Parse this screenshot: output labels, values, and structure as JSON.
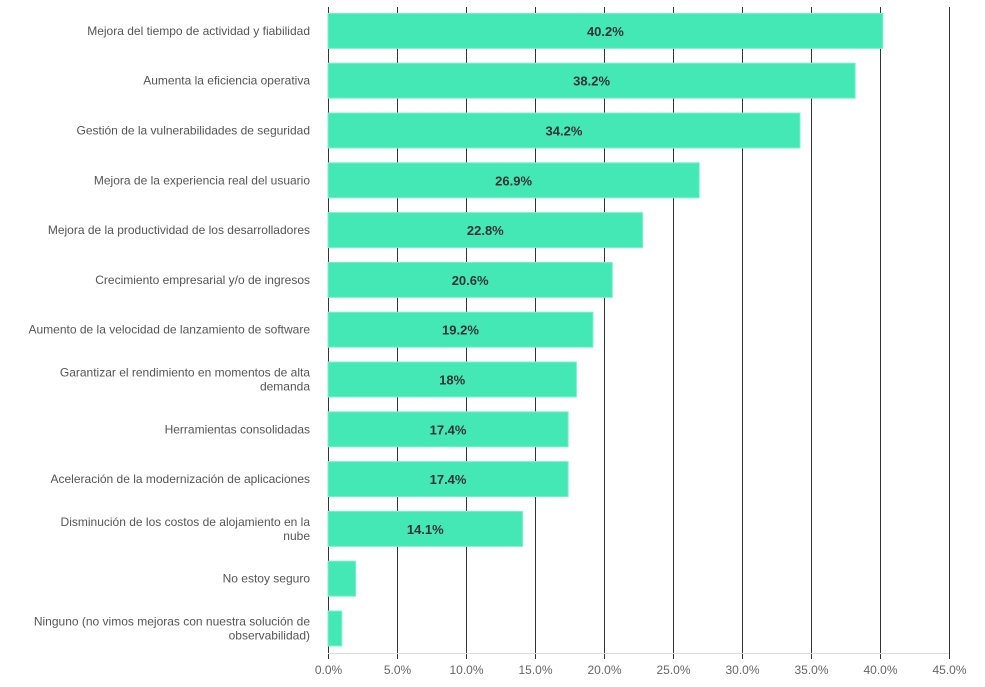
{
  "chart_data": {
    "type": "bar",
    "orientation": "horizontal",
    "title": "",
    "xlabel": "",
    "ylabel": "",
    "xlim": [
      0,
      45
    ],
    "x_ticks": [
      "0.0%",
      "5.0%",
      "10.0%",
      "15.0%",
      "20.0%",
      "25.0%",
      "30.0%",
      "35.0%",
      "40.0%",
      "45.0%"
    ],
    "x_tick_values": [
      0,
      5,
      10,
      15,
      20,
      25,
      30,
      35,
      40,
      45
    ],
    "grid": true,
    "legend": "none",
    "bar_color": "#44e8b5",
    "categories": [
      [
        "Mejora del tiempo de actividad y fiabilidad"
      ],
      [
        "Aumenta la eficiencia operativa"
      ],
      [
        "Gestión de la vulnerabilidades de seguridad"
      ],
      [
        "Mejora de la experiencia real del usuario"
      ],
      [
        "Mejora de la productividad de los desarrolladores"
      ],
      [
        "Crecimiento empresarial y/o de ingresos"
      ],
      [
        "Aumento de la velocidad de lanzamiento de software"
      ],
      [
        "Garantizar el rendimiento en momentos de alta",
        "demanda"
      ],
      [
        "Herramientas consolidadas"
      ],
      [
        "Aceleración de la modernización de aplicaciones"
      ],
      [
        "Disminución de los costos de alojamiento en la",
        "nube"
      ],
      [
        "No estoy seguro"
      ],
      [
        "Ninguno (no vimos mejoras con nuestra solución de",
        "observabilidad)"
      ]
    ],
    "values": [
      40.2,
      38.2,
      34.2,
      26.9,
      22.8,
      20.6,
      19.2,
      18.0,
      17.4,
      17.4,
      14.1,
      2.0,
      1.0
    ],
    "data_labels": [
      "40.2%",
      "38.2%",
      "34.2%",
      "26.9%",
      "22.8%",
      "20.6%",
      "19.2%",
      "18%",
      "17.4%",
      "17.4%",
      "14.1%",
      "",
      ""
    ]
  }
}
